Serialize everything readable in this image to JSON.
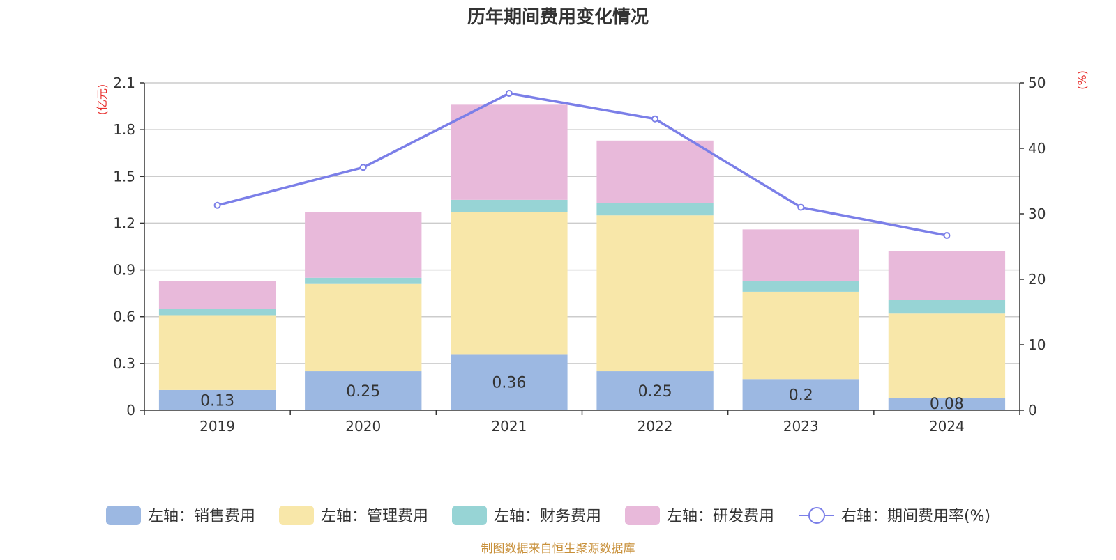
{
  "chart_data": {
    "type": "bar",
    "title": "历年期间费用变化情况",
    "categories": [
      "2019",
      "2020",
      "2021",
      "2022",
      "2023",
      "2024"
    ],
    "left_axis": {
      "unit_label": "(亿元)",
      "ylim": [
        0,
        2.1
      ],
      "ticks": [
        "0",
        "0.3",
        "0.6",
        "0.9",
        "1.2",
        "1.5",
        "1.8",
        "2.1"
      ]
    },
    "right_axis": {
      "unit_label": "(%)",
      "ylim": [
        0,
        50
      ],
      "ticks": [
        "0",
        "10",
        "20",
        "30",
        "40",
        "50"
      ]
    },
    "grid": true,
    "legend_position": "bottom",
    "series": [
      {
        "name": "左轴：销售费用",
        "kind": "bar",
        "axis": "left",
        "color": "#9cb8e2",
        "values": [
          0.13,
          0.25,
          0.36,
          0.25,
          0.2,
          0.08
        ],
        "labels": [
          "0.13",
          "0.25",
          "0.36",
          "0.25",
          "0.2",
          "0.08"
        ]
      },
      {
        "name": "左轴：管理费用",
        "kind": "bar",
        "axis": "left",
        "color": "#f8e7a9",
        "values": [
          0.48,
          0.56,
          0.91,
          1.0,
          0.56,
          0.54
        ]
      },
      {
        "name": "左轴：财务费用",
        "kind": "bar",
        "axis": "left",
        "color": "#97d4d5",
        "values": [
          0.04,
          0.04,
          0.08,
          0.08,
          0.07,
          0.09
        ]
      },
      {
        "name": "左轴：研发费用",
        "kind": "bar",
        "axis": "left",
        "color": "#e8b9da",
        "values": [
          0.18,
          0.42,
          0.61,
          0.4,
          0.33,
          0.31
        ]
      },
      {
        "name": "右轴：期间费用率(%)",
        "kind": "line",
        "axis": "right",
        "color": "#7b7fe8",
        "values": [
          31.3,
          37.1,
          48.4,
          44.5,
          31.0,
          26.7
        ]
      }
    ]
  },
  "footer": {
    "source": "制图数据来自恒生聚源数据库"
  },
  "colors": {
    "axis_unit": "#e8312f",
    "source_text": "#c8903a",
    "grid": "#cccccc",
    "axis_line": "#333333"
  }
}
